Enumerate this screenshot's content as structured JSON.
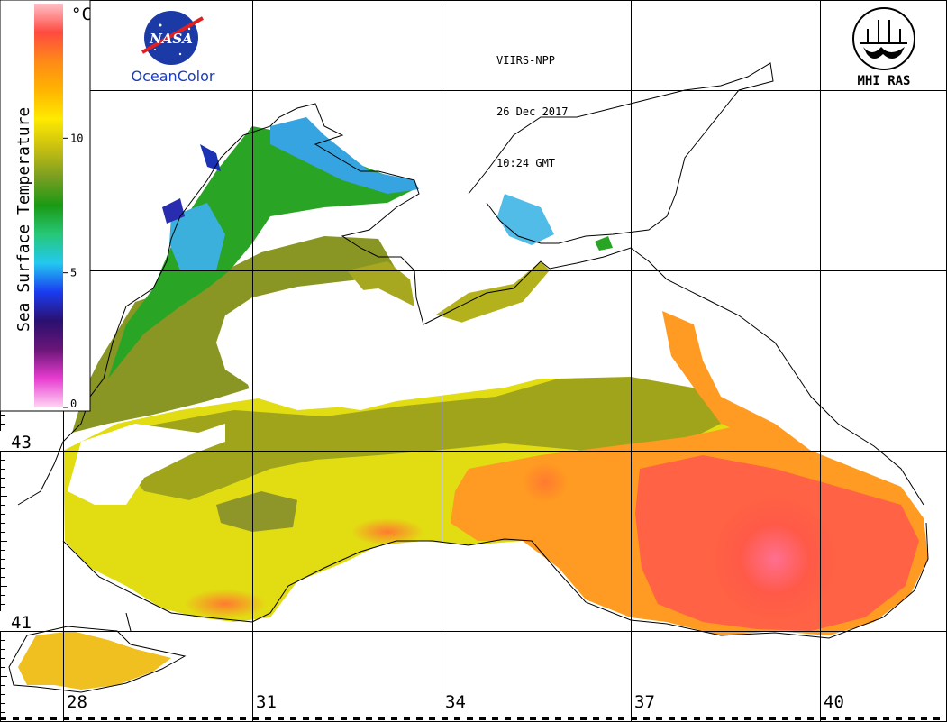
{
  "header": {
    "satellite": "VIIRS-NPP",
    "date": "26 Dec 2017",
    "time": "10:24 GMT"
  },
  "logos": {
    "nasa_text": "NASA",
    "oceancolor_text": "OceanColor",
    "mhi_text": "MHI RAS"
  },
  "colorbar": {
    "title": "Sea Surface Temperature",
    "unit": "°C",
    "ticks": [
      "0",
      "5",
      "10"
    ],
    "min": 0,
    "max": 15,
    "colors": [
      "#ffd6f4",
      "#e83cd0",
      "#6a1678",
      "#2a1070",
      "#1a3cf0",
      "#23c8f0",
      "#26c878",
      "#1a9a14",
      "#7a9e22",
      "#c8c010",
      "#ffea00",
      "#ffb400",
      "#ff8a18",
      "#ff4a40",
      "#ffc0c8"
    ]
  },
  "grid": {
    "lon_labels": [
      "28",
      "31",
      "34",
      "37",
      "40"
    ],
    "lat_labels": [
      "43",
      "41"
    ]
  },
  "colors": {
    "cold_shelf": "#3aa2d6",
    "shelf_green": "#2a9e20",
    "olive": "#8a9a20",
    "yellow": "#e6e010",
    "orange": "#ff9a20",
    "red": "#ff5848",
    "pink": "#ff6f8f"
  }
}
